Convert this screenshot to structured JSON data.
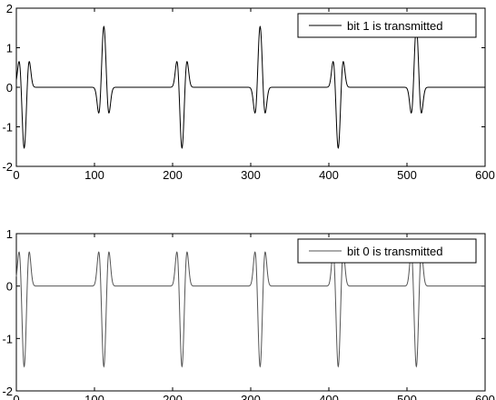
{
  "chart_data": [
    {
      "type": "line",
      "title": "",
      "xlabel": "",
      "ylabel": "",
      "xlim": [
        0,
        600
      ],
      "ylim": [
        -2,
        2
      ],
      "x_ticks": [
        "0",
        "100",
        "200",
        "300",
        "400",
        "500",
        "600"
      ],
      "y_ticks": [
        "2",
        "1",
        "0",
        "-1",
        "-2"
      ],
      "grid": false,
      "legend_position": "top-right",
      "series": [
        {
          "name": "bit 1 is transmitted",
          "color": "#000000",
          "pulse_centers": [
            10,
            112,
            212,
            312,
            412,
            512
          ],
          "pulse_polarity": [
            -1,
            1,
            -1,
            1,
            -1,
            1
          ],
          "pulse_peak": 1.6,
          "pulse_side_lobe": 0.7
        }
      ]
    },
    {
      "type": "line",
      "title": "",
      "xlabel": "",
      "ylabel": "",
      "xlim": [
        0,
        600
      ],
      "ylim": [
        -2,
        1
      ],
      "x_ticks": [
        "0",
        "100",
        "200",
        "300",
        "400",
        "500",
        "600"
      ],
      "y_ticks": [
        "1",
        "0",
        "-1",
        "-2"
      ],
      "grid": false,
      "legend_position": "top-right",
      "series": [
        {
          "name": "bit 0 is transmitted",
          "color": "#555555",
          "pulse_centers": [
            10,
            112,
            212,
            312,
            412,
            512
          ],
          "pulse_polarity": [
            -1,
            -1,
            -1,
            -1,
            -1,
            -1
          ],
          "pulse_peak": 1.6,
          "pulse_side_lobe": 0.7
        }
      ]
    }
  ]
}
